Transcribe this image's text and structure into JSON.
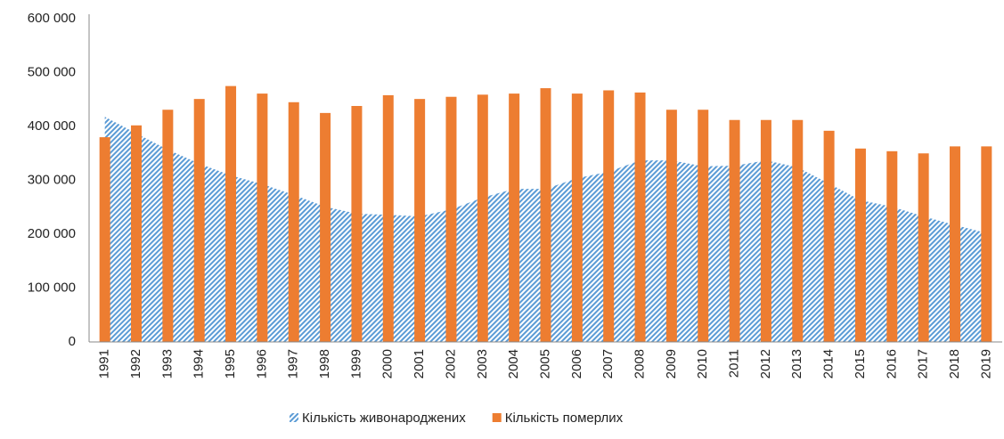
{
  "chart_data": {
    "type": "area_bar",
    "categories": [
      "1991",
      "1992",
      "1993",
      "1994",
      "1995",
      "1996",
      "1997",
      "1998",
      "1999",
      "2000",
      "2001",
      "2002",
      "2003",
      "2004",
      "2005",
      "2006",
      "2007",
      "2008",
      "2009",
      "2010",
      "2011",
      "2012",
      "2013",
      "2014",
      "2015",
      "2016",
      "2017",
      "2018",
      "2019"
    ],
    "series": [
      {
        "name": "Кількість живонароджених",
        "type": "area",
        "color": "#5b9bd5",
        "values": [
          418000,
          387000,
          357000,
          331000,
          309000,
          293000,
          273000,
          251000,
          238000,
          236000,
          233000,
          246000,
          268000,
          284000,
          284000,
          304000,
          316000,
          337000,
          337000,
          326000,
          327000,
          337000,
          324000,
          294000,
          263000,
          251000,
          233000,
          217000,
          202000
        ]
      },
      {
        "name": "Кількість померлих",
        "type": "bar",
        "color": "#ed7d31",
        "values": [
          380000,
          402000,
          431000,
          451000,
          475000,
          461000,
          445000,
          425000,
          438000,
          458000,
          451000,
          455000,
          459000,
          461000,
          471000,
          461000,
          467000,
          463000,
          431000,
          431000,
          412000,
          412000,
          412000,
          392000,
          359000,
          354000,
          350000,
          363000,
          363000
        ]
      }
    ],
    "ylim": [
      0,
      600000
    ],
    "yticks": [
      0,
      {
        "value": 100000,
        "label": "100 000"
      },
      {
        "value": 200000,
        "label": "200 000"
      },
      {
        "value": 300000,
        "label": "300 000"
      },
      {
        "value": 400000,
        "label": "400 000"
      },
      {
        "value": 500000,
        "label": "500 000"
      },
      {
        "value": 600000,
        "label": "600 000"
      }
    ],
    "grid": false,
    "legend": "bottom"
  }
}
